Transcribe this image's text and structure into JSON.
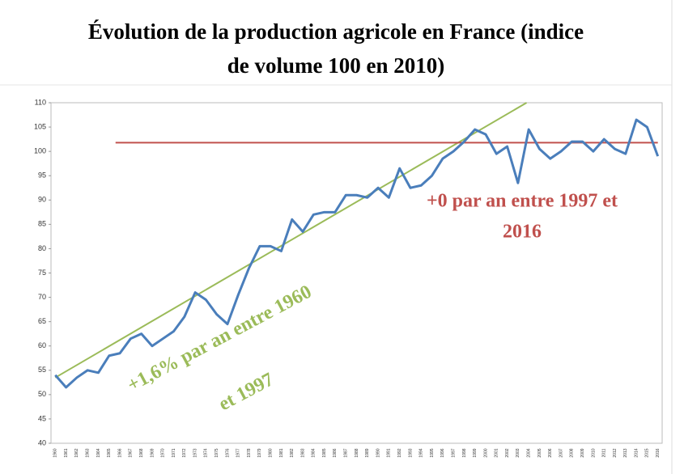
{
  "chart_data": {
    "type": "line",
    "title_lines": [
      "Évolution de la production agricole en France (indice",
      "de volume 100 en 2010)"
    ],
    "x": [
      1960,
      1961,
      1962,
      1963,
      1964,
      1965,
      1966,
      1967,
      1968,
      1969,
      1970,
      1971,
      1972,
      1973,
      1974,
      1975,
      1976,
      1977,
      1978,
      1979,
      1980,
      1981,
      1982,
      1983,
      1984,
      1985,
      1986,
      1987,
      1988,
      1989,
      1990,
      1991,
      1992,
      1993,
      1994,
      1995,
      1996,
      1997,
      1998,
      1999,
      2000,
      2001,
      2002,
      2003,
      2004,
      2005,
      2006,
      2007,
      2008,
      2009,
      2010,
      2011,
      2012,
      2013,
      2014,
      2015,
      2016
    ],
    "series": [
      {
        "color": "#4a7ebb",
        "values": [
          54,
          51.5,
          53.5,
          55,
          54.5,
          58,
          58.5,
          61.5,
          62.5,
          60,
          61.5,
          63,
          66,
          71,
          69.5,
          66.5,
          64.5,
          70.5,
          76,
          80.5,
          80.5,
          79.5,
          86,
          83.5,
          87,
          87.5,
          87.5,
          91,
          91,
          90.5,
          92.5,
          90.5,
          96.5,
          92.5,
          93,
          95,
          98.5,
          100,
          102,
          104.5,
          103.5,
          99.5,
          101,
          93.5,
          104.5,
          100.5,
          98.5,
          100,
          102,
          102,
          100,
          102.5,
          100.5,
          99.5,
          106.5,
          105,
          99
        ]
      }
    ],
    "trend_lines": [
      {
        "color": "#9bbb59",
        "x": [
          1960,
          2003.8
        ],
        "y": [
          53.5,
          110
        ]
      },
      {
        "color": "#c0504d",
        "x": [
          1965.6,
          2016
        ],
        "y": [
          101.8,
          101.8
        ]
      }
    ],
    "annotations": [
      {
        "color": "#9bbb59",
        "lines": [
          "+1,6% par an entre 1960",
          "et 1997"
        ]
      },
      {
        "color": "#c0504d",
        "lines": [
          "+0 par an entre 1997 et",
          "2016"
        ]
      }
    ],
    "xlim": [
      1959.6,
      2016.4
    ],
    "ylim": [
      40,
      110
    ],
    "yticks": [
      40,
      45,
      50,
      55,
      60,
      65,
      70,
      75,
      80,
      85,
      90,
      95,
      100,
      105,
      110
    ],
    "grid": false
  }
}
